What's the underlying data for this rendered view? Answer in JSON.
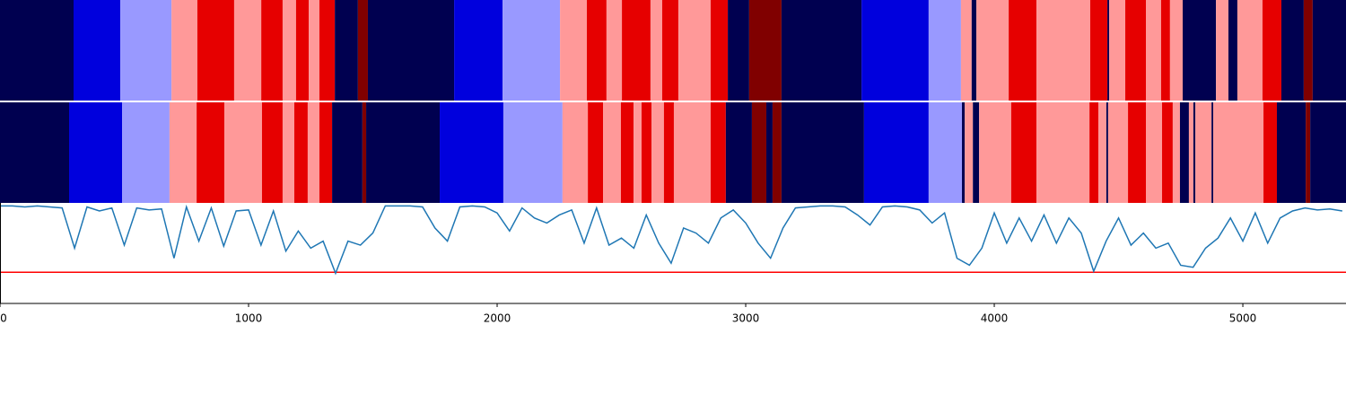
{
  "chart_data": {
    "type": "segments_line",
    "xlim": [
      0,
      5415
    ],
    "xticks": [
      0,
      1000,
      2000,
      3000,
      4000,
      5000
    ],
    "ylim": [
      0,
      1
    ],
    "rows": [
      {
        "edges": [
          0,
          296,
          484,
          690,
          794,
          942,
          1051,
          1137,
          1191,
          1242,
          1285,
          1347,
          1440,
          1480,
          1827,
          2022,
          2253,
          2361,
          2440,
          2502,
          2617,
          2664,
          2729,
          2859,
          2928,
          3014,
          3144,
          3466,
          3736,
          3866,
          3909,
          3928,
          4058,
          4170,
          4386,
          4455,
          4462,
          4527,
          4610,
          4671,
          4707,
          4758,
          4892,
          4942,
          4978,
          5079,
          5155,
          5245,
          5281,
          5415
        ],
        "colors": [
          "#000050",
          "#0000dd",
          "#9999ff",
          "#ff9999",
          "#e60000",
          "#ff9999",
          "#e60000",
          "#ff9999",
          "#e60000",
          "#ff9999",
          "#e60000",
          "#000050",
          "#800000",
          "#000050",
          "#0000dd",
          "#9999ff",
          "#ff9999",
          "#e60000",
          "#ff9999",
          "#e60000",
          "#ff9999",
          "#e60000",
          "#ff9999",
          "#e60000",
          "#000050",
          "#800000",
          "#000050",
          "#0000dd",
          "#9999ff",
          "#ff9999",
          "#000050",
          "#ff9999",
          "#e60000",
          "#ff9999",
          "#e60000",
          "#000050",
          "#ff9999",
          "#e60000",
          "#ff9999",
          "#e60000",
          "#ff9999",
          "#000050",
          "#ff9999",
          "#000050",
          "#ff9999",
          "#e60000",
          "#000050",
          "#800000",
          "#000050"
        ]
      },
      {
        "edges": [
          0,
          278,
          491,
          682,
          791,
          903,
          1054,
          1137,
          1184,
          1238,
          1285,
          1336,
          1458,
          1473,
          1769,
          2025,
          2263,
          2365,
          2426,
          2498,
          2549,
          2581,
          2621,
          2671,
          2711,
          2859,
          2920,
          3025,
          3083,
          3108,
          3144,
          3476,
          3736,
          3870,
          3881,
          3914,
          3939,
          4068,
          4170,
          4383,
          4419,
          4451,
          4458,
          4538,
          4610,
          4675,
          4718,
          4747,
          4783,
          4801,
          4809,
          4874,
          4881,
          5083,
          5137,
          5253,
          5271,
          5415
        ],
        "colors": [
          "#000050",
          "#0000dd",
          "#9999ff",
          "#ff9999",
          "#e60000",
          "#ff9999",
          "#e60000",
          "#ff9999",
          "#e60000",
          "#ff9999",
          "#e60000",
          "#000050",
          "#800000",
          "#000050",
          "#0000dd",
          "#9999ff",
          "#ff9999",
          "#e60000",
          "#ff9999",
          "#e60000",
          "#ff9999",
          "#e60000",
          "#ff9999",
          "#e60000",
          "#ff9999",
          "#e60000",
          "#000050",
          "#800000",
          "#000050",
          "#800000",
          "#000050",
          "#0000dd",
          "#9999ff",
          "#000050",
          "#ff9999",
          "#000050",
          "#ff9999",
          "#e60000",
          "#ff9999",
          "#e60000",
          "#ff9999",
          "#000050",
          "#ff9999",
          "#e60000",
          "#ff9999",
          "#e60000",
          "#ff9999",
          "#000050",
          "#ff9999",
          "#000050",
          "#ff9999",
          "#000050",
          "#ff9999",
          "#e60000",
          "#000050",
          "#800000",
          "#000050"
        ]
      }
    ],
    "line": {
      "color": "#1f77b4",
      "x": [
        0,
        50,
        100,
        150,
        200,
        250,
        300,
        350,
        400,
        450,
        500,
        550,
        600,
        650,
        700,
        750,
        800,
        850,
        900,
        950,
        1000,
        1050,
        1100,
        1150,
        1200,
        1250,
        1300,
        1350,
        1400,
        1450,
        1500,
        1550,
        1600,
        1650,
        1700,
        1750,
        1800,
        1850,
        1900,
        1950,
        2000,
        2050,
        2100,
        2150,
        2200,
        2250,
        2300,
        2350,
        2400,
        2450,
        2500,
        2550,
        2600,
        2650,
        2700,
        2750,
        2800,
        2850,
        2900,
        2950,
        3000,
        3050,
        3100,
        3150,
        3200,
        3250,
        3300,
        3350,
        3400,
        3450,
        3500,
        3550,
        3600,
        3650,
        3700,
        3750,
        3800,
        3850,
        3900,
        3950,
        4000,
        4050,
        4100,
        4150,
        4200,
        4250,
        4300,
        4350,
        4400,
        4450,
        4500,
        4550,
        4600,
        4650,
        4700,
        4750,
        4800,
        4850,
        4900,
        4950,
        5000,
        5050,
        5100,
        5150,
        5200,
        5250,
        5300,
        5350,
        5400
      ],
      "values": [
        0.97,
        0.97,
        0.96,
        0.97,
        0.96,
        0.95,
        0.55,
        0.96,
        0.92,
        0.95,
        0.58,
        0.95,
        0.93,
        0.94,
        0.45,
        0.96,
        0.62,
        0.95,
        0.57,
        0.92,
        0.93,
        0.58,
        0.92,
        0.52,
        0.72,
        0.55,
        0.62,
        0.3,
        0.62,
        0.58,
        0.7,
        0.97,
        0.97,
        0.97,
        0.96,
        0.75,
        0.62,
        0.96,
        0.97,
        0.96,
        0.9,
        0.72,
        0.95,
        0.85,
        0.8,
        0.88,
        0.93,
        0.6,
        0.95,
        0.58,
        0.65,
        0.55,
        0.88,
        0.6,
        0.4,
        0.75,
        0.7,
        0.6,
        0.85,
        0.93,
        0.8,
        0.6,
        0.45,
        0.75,
        0.95,
        0.96,
        0.97,
        0.97,
        0.96,
        0.88,
        0.78,
        0.96,
        0.97,
        0.96,
        0.93,
        0.8,
        0.9,
        0.45,
        0.38,
        0.55,
        0.9,
        0.6,
        0.85,
        0.62,
        0.88,
        0.6,
        0.85,
        0.7,
        0.32,
        0.62,
        0.85,
        0.58,
        0.7,
        0.55,
        0.6,
        0.38,
        0.36,
        0.55,
        0.65,
        0.85,
        0.62,
        0.9,
        0.6,
        0.85,
        0.92,
        0.95,
        0.93,
        0.94,
        0.92
      ]
    },
    "threshold": {
      "value": 0.31,
      "color": "#ff0000"
    }
  }
}
